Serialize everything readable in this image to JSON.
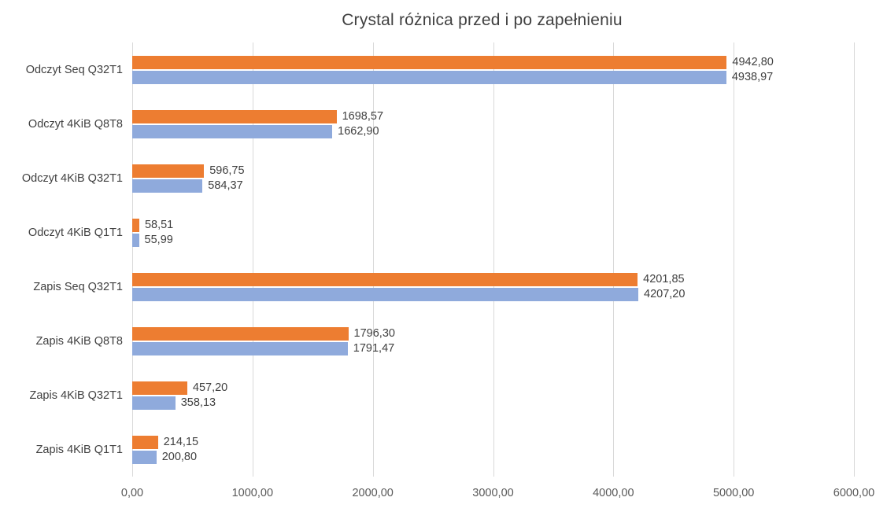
{
  "title": "Crystal różnica przed i po zapełnieniu",
  "colors": {
    "orange": "#ED7D31",
    "blue": "#8FAADC",
    "gridline": "#D9D9D9",
    "title_text": "#404040",
    "label_text": "#404040",
    "tick_text": "#595959",
    "background": "#FFFFFF"
  },
  "chart_data": {
    "type": "bar",
    "orientation": "horizontal",
    "title": "Crystal różnica przed i po zapełnieniu",
    "categories": [
      "Odczyt Seq Q32T1",
      "Odczyt 4KiB Q8T8",
      "Odczyt 4KiB Q32T1",
      "Odczyt 4KiB Q1T1",
      "Zapis Seq Q32T1",
      "Zapis 4KiB Q8T8",
      "Zapis 4KiB Q32T1",
      "Zapis 4KiB Q1T1"
    ],
    "series": [
      {
        "name": "orange",
        "color": "#ED7D31",
        "values": [
          4942.8,
          1698.57,
          596.75,
          58.51,
          4201.85,
          1796.3,
          457.2,
          214.15
        ],
        "labels": [
          "4942,80",
          "1698,57",
          "596,75",
          "58,51",
          "4201,85",
          "1796,30",
          "457,20",
          "214,15"
        ]
      },
      {
        "name": "blue",
        "color": "#8FAADC",
        "values": [
          4938.97,
          1662.9,
          584.37,
          55.99,
          4207.2,
          1791.47,
          358.13,
          200.8
        ],
        "labels": [
          "4938,97",
          "1662,90",
          "584,37",
          "55,99",
          "4207,20",
          "1791,47",
          "358,13",
          "200,80"
        ]
      }
    ],
    "xlim": [
      0,
      6000
    ],
    "x_tick_labels": [
      "0,00",
      "1000,00",
      "2000,00",
      "3000,00",
      "4000,00",
      "5000,00",
      "6000,00"
    ],
    "grid": "vertical",
    "legend": "none"
  }
}
